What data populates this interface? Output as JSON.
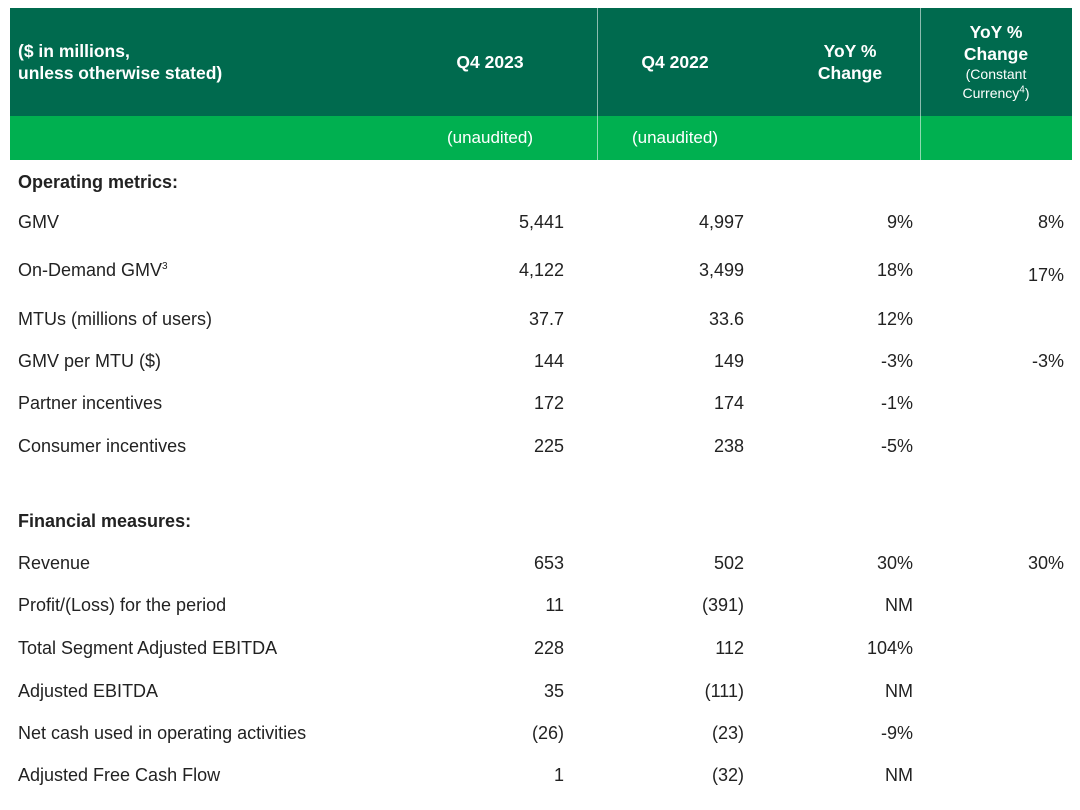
{
  "header": {
    "label_line1": "($ in millions,",
    "label_line2": "unless otherwise stated)",
    "col1": "Q4 2023",
    "col2": "Q4 2022",
    "col3_line1": "YoY %",
    "col3_line2": "Change",
    "col4_line1": "YoY %",
    "col4_line2": "Change",
    "col4_line3": "(Constant",
    "col4_line4_text": "Currency",
    "col4_line4_sup": "4",
    "col4_line4_end": ")"
  },
  "subheader": {
    "col1": "(unaudited)",
    "col2": "(unaudited)"
  },
  "sections": {
    "operating": "Operating metrics:",
    "financial": "Financial measures:"
  },
  "rows": [
    {
      "label": "GMV",
      "sup": "",
      "q4_2023": "5,441",
      "q4_2022": "4,997",
      "yoy": "9%",
      "yoy_cc": "8%"
    },
    {
      "label": "On-Demand GMV",
      "sup": "3",
      "q4_2023": "4,122",
      "q4_2022": "3,499",
      "yoy": "18%",
      "yoy_cc": "17%"
    },
    {
      "label": "MTUs (millions of users)",
      "sup": "",
      "q4_2023": "37.7",
      "q4_2022": "33.6",
      "yoy": "12%",
      "yoy_cc": ""
    },
    {
      "label": "GMV per MTU ($)",
      "sup": "",
      "q4_2023": "144",
      "q4_2022": "149",
      "yoy": "-3%",
      "yoy_cc": "-3%"
    },
    {
      "label": "Partner incentives",
      "sup": "",
      "q4_2023": "172",
      "q4_2022": "174",
      "yoy": "-1%",
      "yoy_cc": ""
    },
    {
      "label": "Consumer incentives",
      "sup": "",
      "q4_2023": "225",
      "q4_2022": "238",
      "yoy": "-5%",
      "yoy_cc": ""
    },
    {
      "label": "Revenue",
      "sup": "",
      "q4_2023": "653",
      "q4_2022": "502",
      "yoy": "30%",
      "yoy_cc": "30%"
    },
    {
      "label": "Profit/(Loss) for the period",
      "sup": "",
      "q4_2023": "11",
      "q4_2022": "(391)",
      "yoy": "NM",
      "yoy_cc": ""
    },
    {
      "label": "Total Segment Adjusted EBITDA",
      "sup": "",
      "q4_2023": "228",
      "q4_2022": "112",
      "yoy": "104%",
      "yoy_cc": ""
    },
    {
      "label": "Adjusted EBITDA",
      "sup": "",
      "q4_2023": "35",
      "q4_2022": "(111)",
      "yoy": "NM",
      "yoy_cc": ""
    },
    {
      "label": "Net cash used in operating activities",
      "sup": "",
      "q4_2023": "(26)",
      "q4_2022": "(23)",
      "yoy": "-9%",
      "yoy_cc": ""
    },
    {
      "label": "Adjusted Free Cash Flow",
      "sup": "",
      "q4_2023": "1",
      "q4_2022": "(32)",
      "yoy": "NM",
      "yoy_cc": ""
    }
  ],
  "colors": {
    "header_dark_green": "#006a4e",
    "header_light_green": "#00b050",
    "text": "#222222"
  }
}
